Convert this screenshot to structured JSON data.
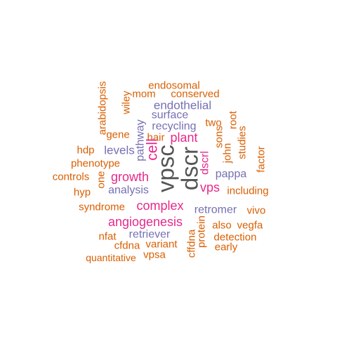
{
  "word_cloud": {
    "colors": {
      "orange": "#d95f02",
      "purple": "#7570b3",
      "magenta": "#e7298a",
      "dark": "#555555"
    },
    "words": [
      {
        "text": "endosomal",
        "color": "orange"
      },
      {
        "text": "mom",
        "color": "orange"
      },
      {
        "text": "conserved",
        "color": "orange"
      },
      {
        "text": "arabidopsis",
        "color": "orange"
      },
      {
        "text": "wiley",
        "color": "orange"
      },
      {
        "text": "endothelial",
        "color": "purple"
      },
      {
        "text": "surface",
        "color": "purple"
      },
      {
        "text": "recycling",
        "color": "purple"
      },
      {
        "text": "two",
        "color": "orange"
      },
      {
        "text": "root",
        "color": "orange"
      },
      {
        "text": "gene",
        "color": "orange"
      },
      {
        "text": "pathway",
        "color": "purple"
      },
      {
        "text": "hair",
        "color": "orange"
      },
      {
        "text": "plant",
        "color": "magenta"
      },
      {
        "text": "sons",
        "color": "orange"
      },
      {
        "text": "studies",
        "color": "orange"
      },
      {
        "text": "hdp",
        "color": "orange"
      },
      {
        "text": "levels",
        "color": "purple"
      },
      {
        "text": "cell",
        "color": "magenta"
      },
      {
        "text": "vpsc",
        "color": "dark"
      },
      {
        "text": "dscr",
        "color": "dark"
      },
      {
        "text": "dscrl",
        "color": "magenta"
      },
      {
        "text": "john",
        "color": "orange"
      },
      {
        "text": "factor",
        "color": "orange"
      },
      {
        "text": "phenotype",
        "color": "orange"
      },
      {
        "text": "pappa",
        "color": "purple"
      },
      {
        "text": "controls",
        "color": "orange"
      },
      {
        "text": "one",
        "color": "orange"
      },
      {
        "text": "growth",
        "color": "magenta"
      },
      {
        "text": "vps",
        "color": "magenta"
      },
      {
        "text": "hyp",
        "color": "orange"
      },
      {
        "text": "analysis",
        "color": "purple"
      },
      {
        "text": "including",
        "color": "orange"
      },
      {
        "text": "syndrome",
        "color": "orange"
      },
      {
        "text": "complex",
        "color": "magenta"
      },
      {
        "text": "retromer",
        "color": "purple"
      },
      {
        "text": "vivo",
        "color": "orange"
      },
      {
        "text": "angiogenesis",
        "color": "magenta"
      },
      {
        "text": "also",
        "color": "orange"
      },
      {
        "text": "vegfa",
        "color": "orange"
      },
      {
        "text": "nfat",
        "color": "orange"
      },
      {
        "text": "retriever",
        "color": "purple"
      },
      {
        "text": "cffdna",
        "color": "orange"
      },
      {
        "text": "protein",
        "color": "orange"
      },
      {
        "text": "detection",
        "color": "orange"
      },
      {
        "text": "cfdna",
        "color": "orange"
      },
      {
        "text": "variant",
        "color": "orange"
      },
      {
        "text": "early",
        "color": "orange"
      },
      {
        "text": "quantitative",
        "color": "orange"
      },
      {
        "text": "vpsa",
        "color": "orange"
      }
    ]
  }
}
